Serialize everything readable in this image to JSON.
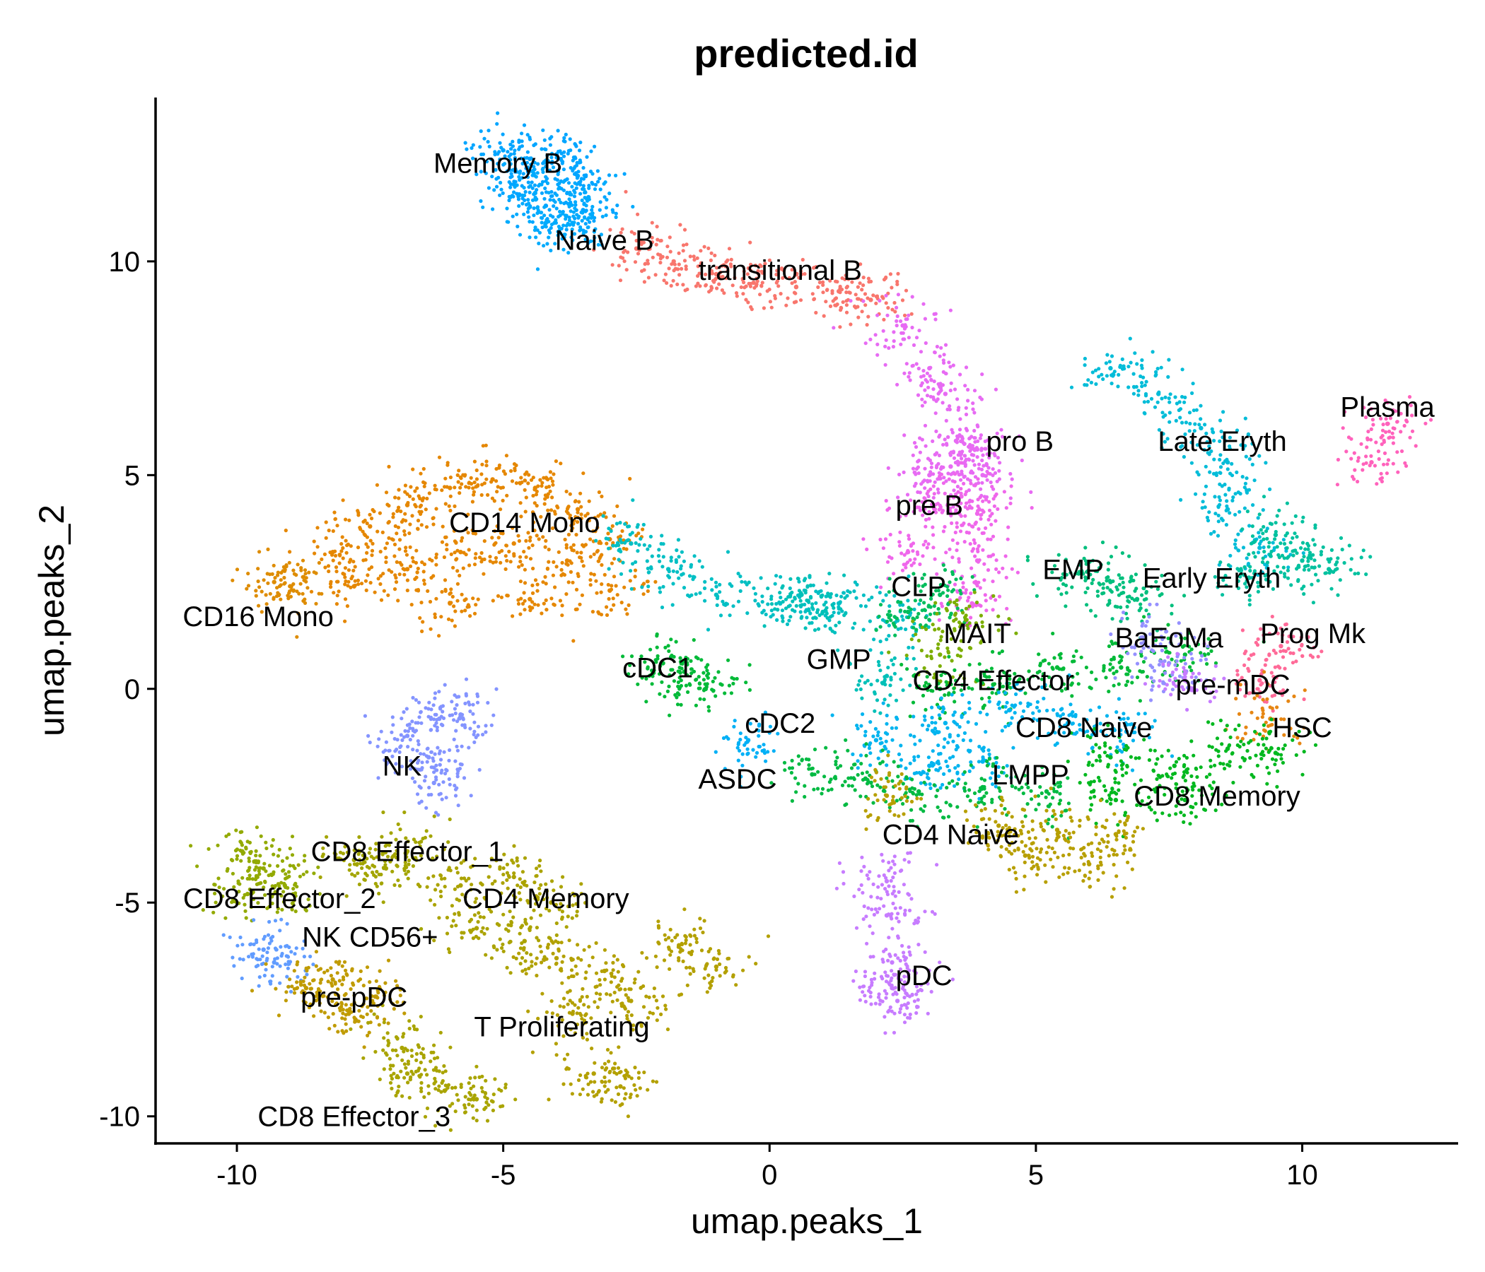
{
  "chart_data": {
    "type": "scatter",
    "title": "predicted.id",
    "xlabel": "umap.peaks_1",
    "ylabel": "umap.peaks_2",
    "xlim": [
      -11.5,
      12.9
    ],
    "ylim": [
      -10.6,
      13.8
    ],
    "xticks": [
      -10,
      -5,
      0,
      5,
      10
    ],
    "yticks": [
      -10,
      -5,
      0,
      5,
      10
    ],
    "xtick_labels": [
      "-10",
      "-5",
      "0",
      "5",
      "10"
    ],
    "ytick_labels": [
      "-10",
      "-5",
      "0",
      "5",
      "10"
    ],
    "grid": false,
    "legend": "none",
    "clusters": [
      {
        "name": "Memory B",
        "color": "#00A5FF",
        "points": [
          [
            -5.0,
            12.6
          ],
          [
            -4.5,
            12.4
          ],
          [
            -4.0,
            12.5
          ],
          [
            -3.6,
            12.0
          ],
          [
            -4.8,
            11.8
          ],
          [
            -4.2,
            11.3
          ],
          [
            -3.5,
            11.2
          ]
        ]
      },
      {
        "name": "Naive B",
        "color": "#00ABFD",
        "points": [
          [
            -4.2,
            10.9
          ],
          [
            -3.7,
            10.9
          ],
          [
            -3.4,
            11.5
          ],
          [
            -4.4,
            11.6
          ]
        ]
      },
      {
        "name": "transitional B",
        "color": "#F8766D",
        "points": [
          [
            -2.5,
            10.3
          ],
          [
            -1.8,
            10.0
          ],
          [
            -1.0,
            9.7
          ],
          [
            -0.3,
            9.5
          ],
          [
            0.5,
            9.4
          ],
          [
            1.3,
            9.3
          ],
          [
            1.9,
            9.1
          ]
        ]
      },
      {
        "name": "pro B",
        "color": "#E76BF3",
        "points": [
          [
            3.5,
            5.8
          ],
          [
            3.9,
            5.6
          ],
          [
            3.4,
            5.2
          ],
          [
            4.0,
            5.0
          ],
          [
            3.0,
            5.0
          ],
          [
            2.5,
            8.5
          ],
          [
            3.0,
            7.5
          ],
          [
            3.3,
            6.9
          ]
        ]
      },
      {
        "name": "pre B",
        "color": "#EF67EB",
        "points": [
          [
            3.6,
            4.5
          ],
          [
            3.1,
            4.2
          ],
          [
            3.9,
            4.1
          ],
          [
            2.6,
            3.2
          ],
          [
            3.9,
            3.0
          ],
          [
            3.8,
            2.0
          ]
        ]
      },
      {
        "name": "CD14 Mono",
        "color": "#E58700",
        "points": [
          [
            -8.2,
            3.2
          ],
          [
            -7.5,
            3.8
          ],
          [
            -6.8,
            4.3
          ],
          [
            -6.0,
            4.7
          ],
          [
            -5.2,
            4.9
          ],
          [
            -4.4,
            4.7
          ],
          [
            -3.6,
            4.2
          ],
          [
            -3.0,
            3.5
          ],
          [
            -7.8,
            2.4
          ],
          [
            -6.8,
            2.8
          ],
          [
            -5.8,
            3.2
          ],
          [
            -4.8,
            3.4
          ],
          [
            -3.8,
            3.0
          ],
          [
            -3.0,
            2.3
          ],
          [
            -6.0,
            2.0
          ],
          [
            -4.5,
            2.1
          ]
        ]
      },
      {
        "name": "CD16 Mono",
        "color": "#DE8C00",
        "points": [
          [
            -9.3,
            2.5
          ],
          [
            -9.0,
            2.4
          ]
        ]
      },
      {
        "name": "cDC1",
        "color": "#00BA38",
        "points": [
          [
            -1.6,
            0.4
          ],
          [
            -1.2,
            0.0
          ],
          [
            -2.0,
            0.6
          ]
        ]
      },
      {
        "name": "cDC2",
        "color": "#00BFC4",
        "points": [
          [
            -2.6,
            3.4
          ],
          [
            -1.9,
            2.8
          ],
          [
            -1.0,
            2.2
          ],
          [
            0.2,
            2.0
          ],
          [
            1.3,
            2.0
          ],
          [
            2.4,
            1.6
          ]
        ]
      },
      {
        "name": "GMP",
        "color": "#00C0B8",
        "points": [
          [
            0.6,
            2.2
          ],
          [
            1.0,
            1.8
          ],
          [
            2.2,
            0.3
          ]
        ]
      },
      {
        "name": "ASDC",
        "color": "#00B0F6",
        "points": [
          [
            -0.4,
            -1.2
          ]
        ]
      },
      {
        "name": "CLP",
        "color": "#00BD5C",
        "points": [
          [
            2.6,
            1.8
          ],
          [
            3.2,
            2.2
          ]
        ]
      },
      {
        "name": "MAIT",
        "color": "#7CAE00",
        "points": [
          [
            3.6,
            1.5
          ],
          [
            3.2,
            0.8
          ]
        ]
      },
      {
        "name": "CD4 Effector",
        "color": "#00BA38",
        "points": [
          [
            3.2,
            0.0
          ],
          [
            4.2,
            0.1
          ],
          [
            5.4,
            0.5
          ],
          [
            6.6,
            0.5
          ],
          [
            7.8,
            0.8
          ]
        ]
      },
      {
        "name": "EMP",
        "color": "#00BF7D",
        "points": [
          [
            5.8,
            2.7
          ],
          [
            6.4,
            2.5
          ],
          [
            6.9,
            2.1
          ]
        ]
      },
      {
        "name": "Late Eryth",
        "color": "#00BCD8",
        "points": [
          [
            6.4,
            7.5
          ],
          [
            7.3,
            6.9
          ],
          [
            8.1,
            6.1
          ],
          [
            8.6,
            5.3
          ],
          [
            8.6,
            4.2
          ],
          [
            9.2,
            3.3
          ]
        ]
      },
      {
        "name": "Early Eryth",
        "color": "#00C19F",
        "points": [
          [
            9.5,
            3.6
          ],
          [
            10.0,
            3.0
          ],
          [
            10.5,
            2.8
          ],
          [
            9.0,
            2.6
          ]
        ]
      },
      {
        "name": "Plasma",
        "color": "#FF62BC",
        "points": [
          [
            11.6,
            6.2
          ],
          [
            11.3,
            5.3
          ]
        ]
      },
      {
        "name": "Prog Mk",
        "color": "#FF6A98",
        "points": [
          [
            9.6,
            1.0
          ],
          [
            9.2,
            0.2
          ]
        ]
      },
      {
        "name": "BaEoMa",
        "color": "#9590FF",
        "points": [
          [
            7.0,
            1.2
          ],
          [
            7.5,
            0.6
          ]
        ]
      },
      {
        "name": "pre-mDC",
        "color": "#C77CFF",
        "points": [
          [
            7.8,
            0.2
          ]
        ]
      },
      {
        "name": "HSC",
        "color": "#E68613",
        "points": [
          [
            9.4,
            -0.7
          ]
        ]
      },
      {
        "name": "CD8 Naive",
        "color": "#00B4EF",
        "points": [
          [
            2.0,
            -1.2
          ],
          [
            3.3,
            -0.8
          ],
          [
            4.5,
            -0.5
          ],
          [
            5.6,
            -0.8
          ],
          [
            6.7,
            -1.0
          ],
          [
            3.0,
            -1.8
          ],
          [
            4.0,
            -1.7
          ]
        ]
      },
      {
        "name": "LMPP",
        "color": "#00BA42",
        "points": [
          [
            0.8,
            -2.0
          ],
          [
            1.8,
            -2.1
          ],
          [
            2.8,
            -2.4
          ],
          [
            4.0,
            -2.3
          ],
          [
            5.2,
            -2.4
          ]
        ]
      },
      {
        "name": "CD8 Memory",
        "color": "#00B81F",
        "points": [
          [
            6.4,
            -1.6
          ],
          [
            7.6,
            -1.8
          ],
          [
            8.6,
            -1.4
          ],
          [
            9.5,
            -1.5
          ],
          [
            7.8,
            -2.6
          ],
          [
            6.5,
            -2.6
          ]
        ]
      },
      {
        "name": "CD4 Naive",
        "color": "#B79F00",
        "points": [
          [
            4.3,
            -3.2
          ],
          [
            5.4,
            -3.3
          ],
          [
            6.5,
            -3.4
          ],
          [
            4.8,
            -3.9
          ],
          [
            6.0,
            -4.1
          ],
          [
            2.2,
            -2.5
          ]
        ]
      },
      {
        "name": "pDC",
        "color": "#C77CFF",
        "points": [
          [
            2.2,
            -4.5
          ],
          [
            2.2,
            -5.3
          ],
          [
            2.3,
            -6.4
          ],
          [
            2.4,
            -7.3
          ],
          [
            2.3,
            -7.0
          ]
        ]
      },
      {
        "name": "NK",
        "color": "#8494FF",
        "points": [
          [
            -6.8,
            -1.1
          ],
          [
            -6.2,
            -0.7
          ],
          [
            -5.8,
            -0.6
          ],
          [
            -6.4,
            -1.6
          ],
          [
            -6.3,
            -2.2
          ]
        ]
      },
      {
        "name": "CD8 Effector_1",
        "color": "#A3A500",
        "points": [
          [
            -7.8,
            -4.0
          ],
          [
            -7.2,
            -4.2
          ],
          [
            -6.8,
            -3.8
          ]
        ]
      },
      {
        "name": "CD8 Effector_2",
        "color": "#93AA00",
        "points": [
          [
            -9.9,
            -3.8
          ],
          [
            -9.5,
            -4.2
          ],
          [
            -9.1,
            -4.6
          ],
          [
            -9.8,
            -4.8
          ]
        ]
      },
      {
        "name": "NK CD56+",
        "color": "#619CFF",
        "points": [
          [
            -9.5,
            -6.1
          ],
          [
            -9.3,
            -6.4
          ]
        ]
      },
      {
        "name": "CD4 Memory",
        "color": "#ABA300",
        "points": [
          [
            -5.8,
            -4.6
          ],
          [
            -4.8,
            -4.4
          ],
          [
            -4.1,
            -5.0
          ],
          [
            -5.5,
            -5.6
          ],
          [
            -4.6,
            -5.9
          ]
        ]
      },
      {
        "name": "pre-pDC",
        "color": "#C09B00",
        "points": [
          [
            -8.7,
            -7.0
          ],
          [
            -7.9,
            -7.6
          ],
          [
            -7.4,
            -7.2
          ],
          [
            -8.2,
            -6.8
          ]
        ]
      },
      {
        "name": "T Proliferating",
        "color": "#B3A000",
        "points": [
          [
            -4.0,
            -6.3
          ],
          [
            -3.1,
            -6.6
          ],
          [
            -2.6,
            -7.3
          ],
          [
            -3.7,
            -7.6
          ],
          [
            -3.3,
            -9.0
          ],
          [
            -2.8,
            -9.3
          ],
          [
            -1.7,
            -6.0
          ],
          [
            -1.0,
            -6.5
          ]
        ]
      },
      {
        "name": "CD8 Effector_3",
        "color": "#A9A400",
        "points": [
          [
            -6.8,
            -9.0
          ],
          [
            -6.1,
            -9.4
          ],
          [
            -5.5,
            -9.6
          ],
          [
            -6.9,
            -8.4
          ]
        ]
      }
    ],
    "labels": [
      {
        "text": "Memory B",
        "x": -5.1,
        "y": 12.3
      },
      {
        "text": "Naive B",
        "x": -3.1,
        "y": 10.5
      },
      {
        "text": "transitional B",
        "x": 0.2,
        "y": 9.8
      },
      {
        "text": "pro B",
        "x": 4.7,
        "y": 5.8
      },
      {
        "text": "pre B",
        "x": 3.0,
        "y": 4.3
      },
      {
        "text": "CD14 Mono",
        "x": -4.6,
        "y": 3.9
      },
      {
        "text": "CD16 Mono",
        "x": -9.6,
        "y": 1.7
      },
      {
        "text": "EMP",
        "x": 5.7,
        "y": 2.8
      },
      {
        "text": "Early Eryth",
        "x": 8.3,
        "y": 2.6
      },
      {
        "text": "Late Eryth",
        "x": 8.5,
        "y": 5.8
      },
      {
        "text": "Plasma",
        "x": 11.6,
        "y": 6.6
      },
      {
        "text": "CLP",
        "x": 2.8,
        "y": 2.4
      },
      {
        "text": "MAIT",
        "x": 3.9,
        "y": 1.3
      },
      {
        "text": "BaEoMa",
        "x": 7.5,
        "y": 1.2
      },
      {
        "text": "Prog Mk",
        "x": 10.2,
        "y": 1.3
      },
      {
        "text": "GMP",
        "x": 1.3,
        "y": 0.7
      },
      {
        "text": "cDC1",
        "x": -2.1,
        "y": 0.5
      },
      {
        "text": "CD4 Effector",
        "x": 4.2,
        "y": 0.2
      },
      {
        "text": "pre-mDC",
        "x": 8.7,
        "y": 0.1
      },
      {
        "text": "cDC2",
        "x": 0.2,
        "y": -0.8
      },
      {
        "text": "CD8 Naive",
        "x": 5.9,
        "y": -0.9
      },
      {
        "text": "HSC",
        "x": 10.0,
        "y": -0.9
      },
      {
        "text": "NK",
        "x": -6.9,
        "y": -1.8
      },
      {
        "text": "ASDC",
        "x": -0.6,
        "y": -2.1
      },
      {
        "text": "LMPP",
        "x": 4.9,
        "y": -2.0
      },
      {
        "text": "CD8 Memory",
        "x": 8.4,
        "y": -2.5
      },
      {
        "text": "CD4 Naive",
        "x": 3.4,
        "y": -3.4
      },
      {
        "text": "CD8 Effector_1",
        "x": -6.8,
        "y": -3.8
      },
      {
        "text": "CD8 Effector_2",
        "x": -9.2,
        "y": -4.9
      },
      {
        "text": "CD4 Memory",
        "x": -4.2,
        "y": -4.9
      },
      {
        "text": "NK CD56+",
        "x": -7.5,
        "y": -5.8
      },
      {
        "text": "pre-pDC",
        "x": -7.8,
        "y": -7.2
      },
      {
        "text": "T Proliferating",
        "x": -3.9,
        "y": -7.9
      },
      {
        "text": "pDC",
        "x": 2.9,
        "y": -6.7
      },
      {
        "text": "CD8 Effector_3",
        "x": -7.8,
        "y": -10.0
      }
    ]
  }
}
